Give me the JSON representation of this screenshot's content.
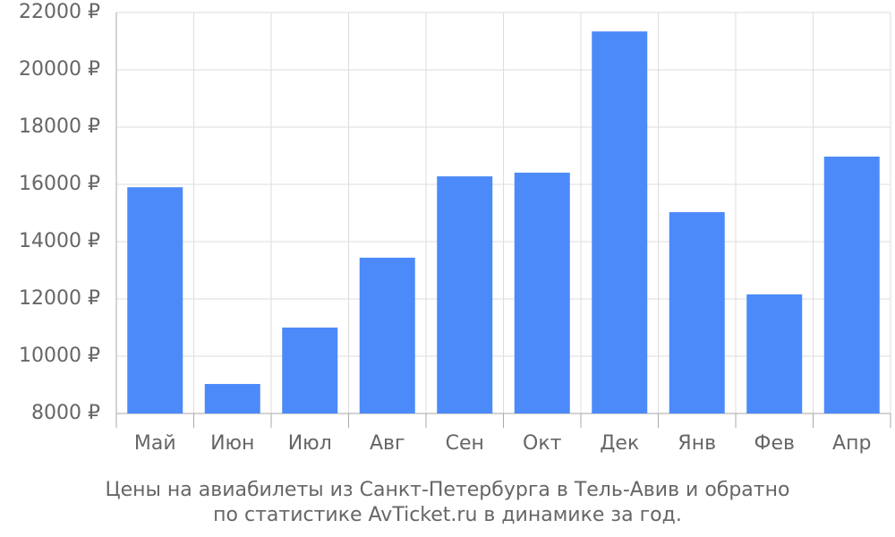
{
  "chart_data": {
    "type": "bar",
    "title": [
      "Цены на авиабилеты из Санкт-Петербурга в Тель-Авив и обратно",
      "по статистике AvTicket.ru в динамике за год."
    ],
    "categories": [
      "Май",
      "Июн",
      "Июл",
      "Авг",
      "Сен",
      "Окт",
      "Дек",
      "Янв",
      "Фев",
      "Апр"
    ],
    "values": [
      15900,
      9030,
      11000,
      13440,
      16280,
      16410,
      21340,
      15030,
      12160,
      16970
    ],
    "color": "#4d8af9",
    "ylim": [
      8000,
      22000
    ],
    "yticks": [
      {
        "value": 8000,
        "label": "8000 ₽"
      },
      {
        "value": 10000,
        "label": "10000 ₽"
      },
      {
        "value": 12000,
        "label": "12000 ₽"
      },
      {
        "value": 14000,
        "label": "14000 ₽"
      },
      {
        "value": 16000,
        "label": "16000 ₽"
      },
      {
        "value": 18000,
        "label": "18000 ₽"
      },
      {
        "value": 20000,
        "label": "20000 ₽"
      },
      {
        "value": 22000,
        "label": "22000 ₽"
      }
    ],
    "grid": true
  }
}
